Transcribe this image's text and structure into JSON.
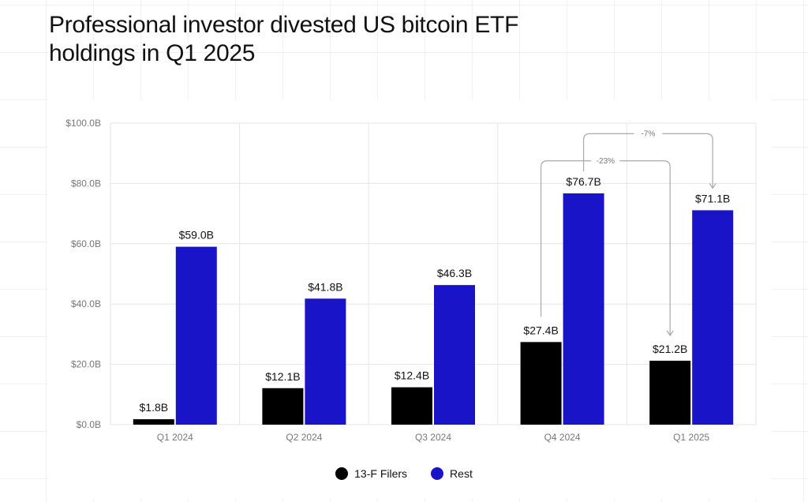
{
  "title": "Professional investor divested US bitcoin ETF holdings in Q1 2025",
  "colors": {
    "filers": "#000000",
    "rest": "#1a14c8",
    "grid": "#e6e6e6",
    "annotation": "#aaaaaa"
  },
  "chart_data": {
    "type": "bar",
    "title": "Professional investor divested US bitcoin ETF holdings in Q1 2025",
    "xlabel": "",
    "ylabel": "",
    "ylim": [
      0,
      100
    ],
    "y_ticks": [
      0,
      20,
      40,
      60,
      80,
      100
    ],
    "y_tick_labels": [
      "$0.0B",
      "$20.0B",
      "$40.0B",
      "$60.0B",
      "$80.0B",
      "$100.0B"
    ],
    "categories": [
      "Q1 2024",
      "Q2 2024",
      "Q3 2024",
      "Q4 2024",
      "Q1 2025"
    ],
    "series": [
      {
        "name": "13-F Filers",
        "values": [
          1.8,
          12.1,
          12.4,
          27.4,
          21.2
        ],
        "labels": [
          "$1.8B",
          "$12.1B",
          "$12.4B",
          "$27.4B",
          "$21.2B"
        ]
      },
      {
        "name": "Rest",
        "values": [
          59.0,
          41.8,
          46.3,
          76.7,
          71.1
        ],
        "labels": [
          "$59.0B",
          "$41.8B",
          "$46.3B",
          "$76.7B",
          "$71.1B"
        ]
      }
    ],
    "annotations": [
      {
        "series": 0,
        "from": 3,
        "to": 4,
        "label": "-23%"
      },
      {
        "series": 1,
        "from": 3,
        "to": 4,
        "label": "-7%"
      }
    ],
    "legend_position": "bottom-center",
    "grid": true
  }
}
